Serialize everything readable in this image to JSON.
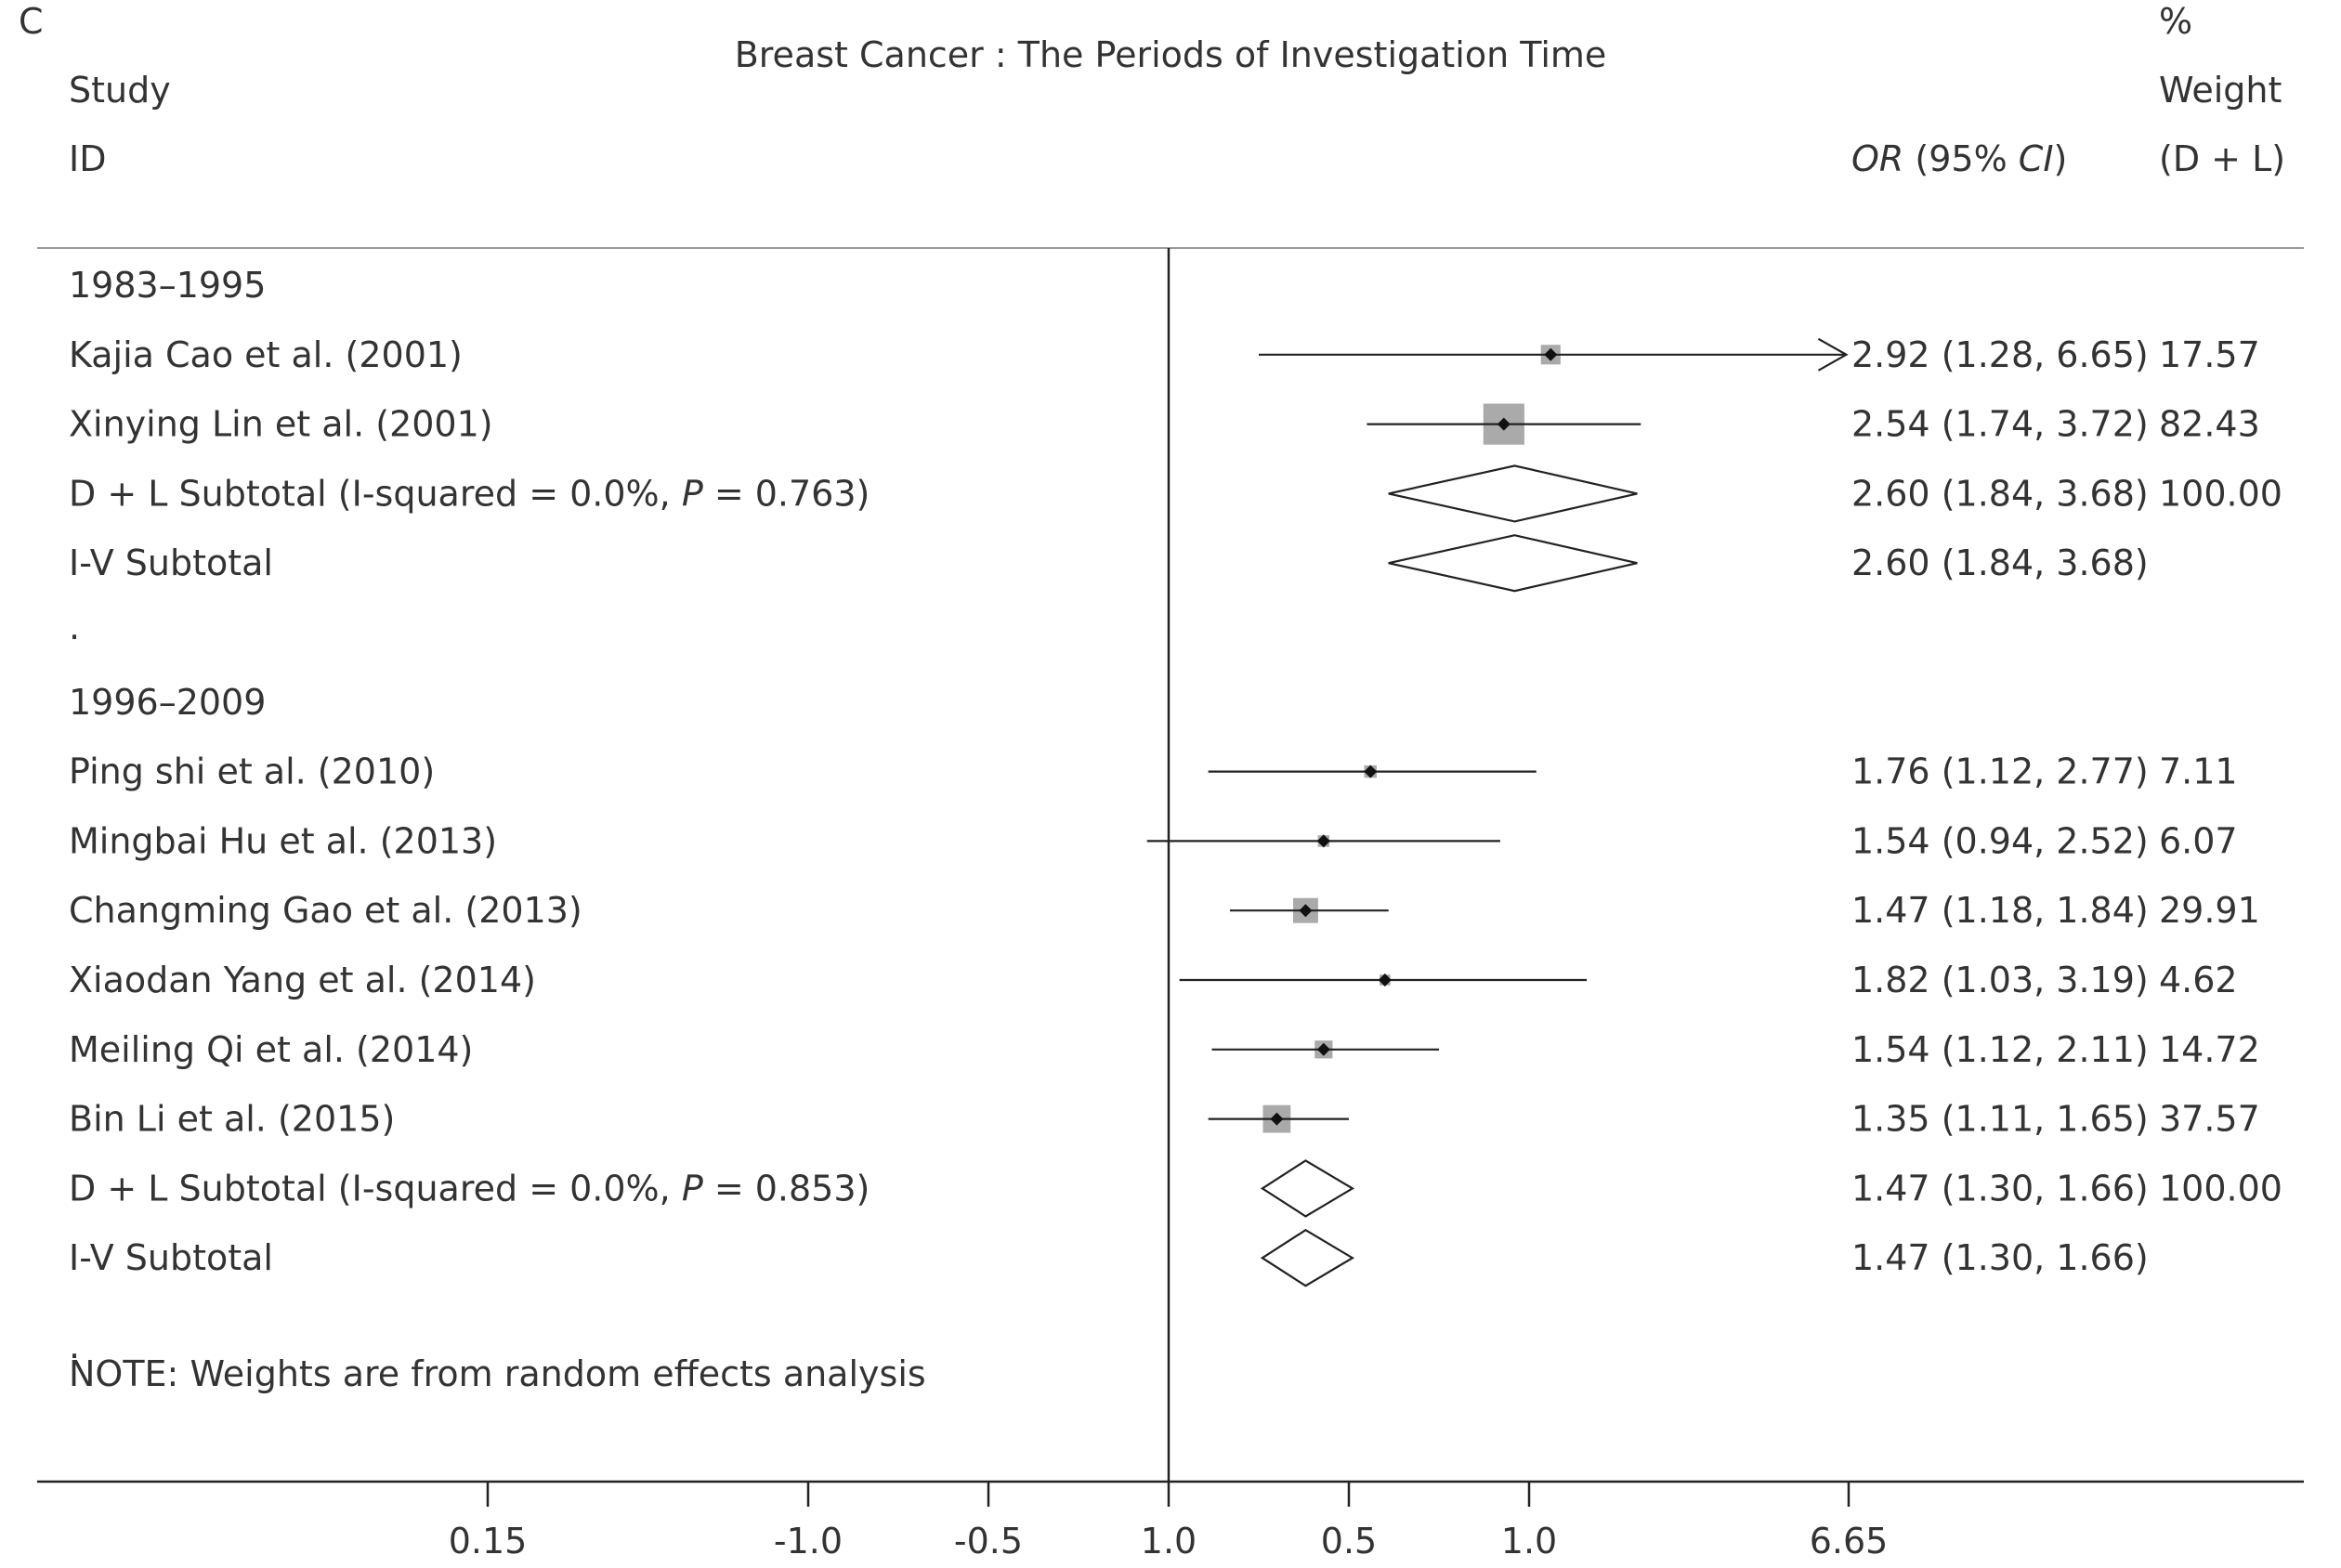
{
  "chart_data": {
    "type": "forest",
    "panel_letter": "C",
    "title": "Breast Cancer : The Periods of Investigation Time",
    "header": {
      "study_line1": "Study",
      "study_line2": "ID",
      "or_label_italic": "OR",
      "or_label_rest": " (95% ",
      "ci_label_italic": "CI",
      "ci_label_close": ")",
      "weight_line1": "%",
      "weight_line2": "Weight",
      "weight_line3": "(D + L)"
    },
    "x_ticks": [
      "0.15",
      "-1.0",
      "-0.5",
      "1.0",
      "0.5",
      "1.0",
      "6.65"
    ],
    "rows": [
      {
        "kind": "group",
        "label": "1983–1995"
      },
      {
        "kind": "study",
        "label": "Kajia Cao et al. (2001)",
        "or_ci": "2.92 (1.28, 6.65)",
        "weight": "17.57",
        "plot": {
          "center": 1.06,
          "low": 0.25,
          "high": 1.88,
          "box": 0.22,
          "arrow": true
        }
      },
      {
        "kind": "study",
        "label": "Xinying Lin et al. (2001)",
        "or_ci": "2.54 (1.74, 3.72)",
        "weight": "82.43",
        "plot": {
          "center": 0.93,
          "low": 0.55,
          "high": 1.31,
          "box": 0.46
        }
      },
      {
        "kind": "subtotal",
        "label_pre": "D + L Subtotal  (I-squared = 0.0%, ",
        "label_p": "P",
        "label_post": " = 0.763)",
        "or_ci": "2.60 (1.84, 3.68)",
        "weight": "100.00",
        "plot": {
          "center": 0.96,
          "low": 0.61,
          "high": 1.3
        }
      },
      {
        "kind": "subtotal",
        "label_pre": "I-V Subtotal",
        "label_p": "",
        "label_post": "",
        "or_ci": "2.60 (1.84, 3.68)",
        "weight": "",
        "plot": {
          "center": 0.96,
          "low": 0.61,
          "high": 1.3
        }
      },
      {
        "kind": "dot",
        "label": "."
      },
      {
        "kind": "group",
        "label": "1996–2009"
      },
      {
        "kind": "study",
        "label": "Ping shi et al. (2010)",
        "or_ci": "1.76 (1.12, 2.77)",
        "weight": "7.11",
        "plot": {
          "center": 0.56,
          "low": 0.11,
          "high": 1.02,
          "box": 0.14
        }
      },
      {
        "kind": "study",
        "label": "Mingbai Hu et al. (2013)",
        "or_ci": "1.54 (0.94, 2.52)",
        "weight": "6.07",
        "plot": {
          "center": 0.43,
          "low": -0.06,
          "high": 0.92,
          "box": 0.13
        }
      },
      {
        "kind": "study",
        "label": "Changming Gao et al. (2013)",
        "or_ci": "1.47 (1.18, 1.84)",
        "weight": "29.91",
        "plot": {
          "center": 0.38,
          "low": 0.17,
          "high": 0.61,
          "box": 0.28
        }
      },
      {
        "kind": "study",
        "label": "Xiaodan Yang et al. (2014)",
        "or_ci": "1.82 (1.03, 3.19)",
        "weight": "4.62",
        "plot": {
          "center": 0.6,
          "low": 0.03,
          "high": 1.16,
          "box": 0.12
        }
      },
      {
        "kind": "study",
        "label": "Meiling Qi et al. (2014)",
        "or_ci": "1.54 (1.12, 2.11)",
        "weight": "14.72",
        "plot": {
          "center": 0.43,
          "low": 0.12,
          "high": 0.75,
          "box": 0.2
        }
      },
      {
        "kind": "study",
        "label": "Bin Li et al. (2015)",
        "or_ci": "1.35 (1.11, 1.65)",
        "weight": "37.57",
        "plot": {
          "center": 0.3,
          "low": 0.11,
          "high": 0.5,
          "box": 0.31
        }
      },
      {
        "kind": "subtotal",
        "label_pre": "D + L Subtotal  (I-squared = 0.0%, ",
        "label_p": "P",
        "label_post": " = 0.853)",
        "or_ci": "1.47 (1.30, 1.66)",
        "weight": "100.00",
        "plot": {
          "center": 0.38,
          "low": 0.26,
          "high": 0.51
        }
      },
      {
        "kind": "subtotal",
        "label_pre": "I-V Subtotal",
        "label_p": "",
        "label_post": "",
        "or_ci": "1.47 (1.30, 1.66)",
        "weight": "",
        "plot": {
          "center": 0.38,
          "low": 0.26,
          "high": 0.51
        }
      }
    ],
    "note_dot": ".",
    "note": "NOTE: Weights are from random effects analysis"
  }
}
